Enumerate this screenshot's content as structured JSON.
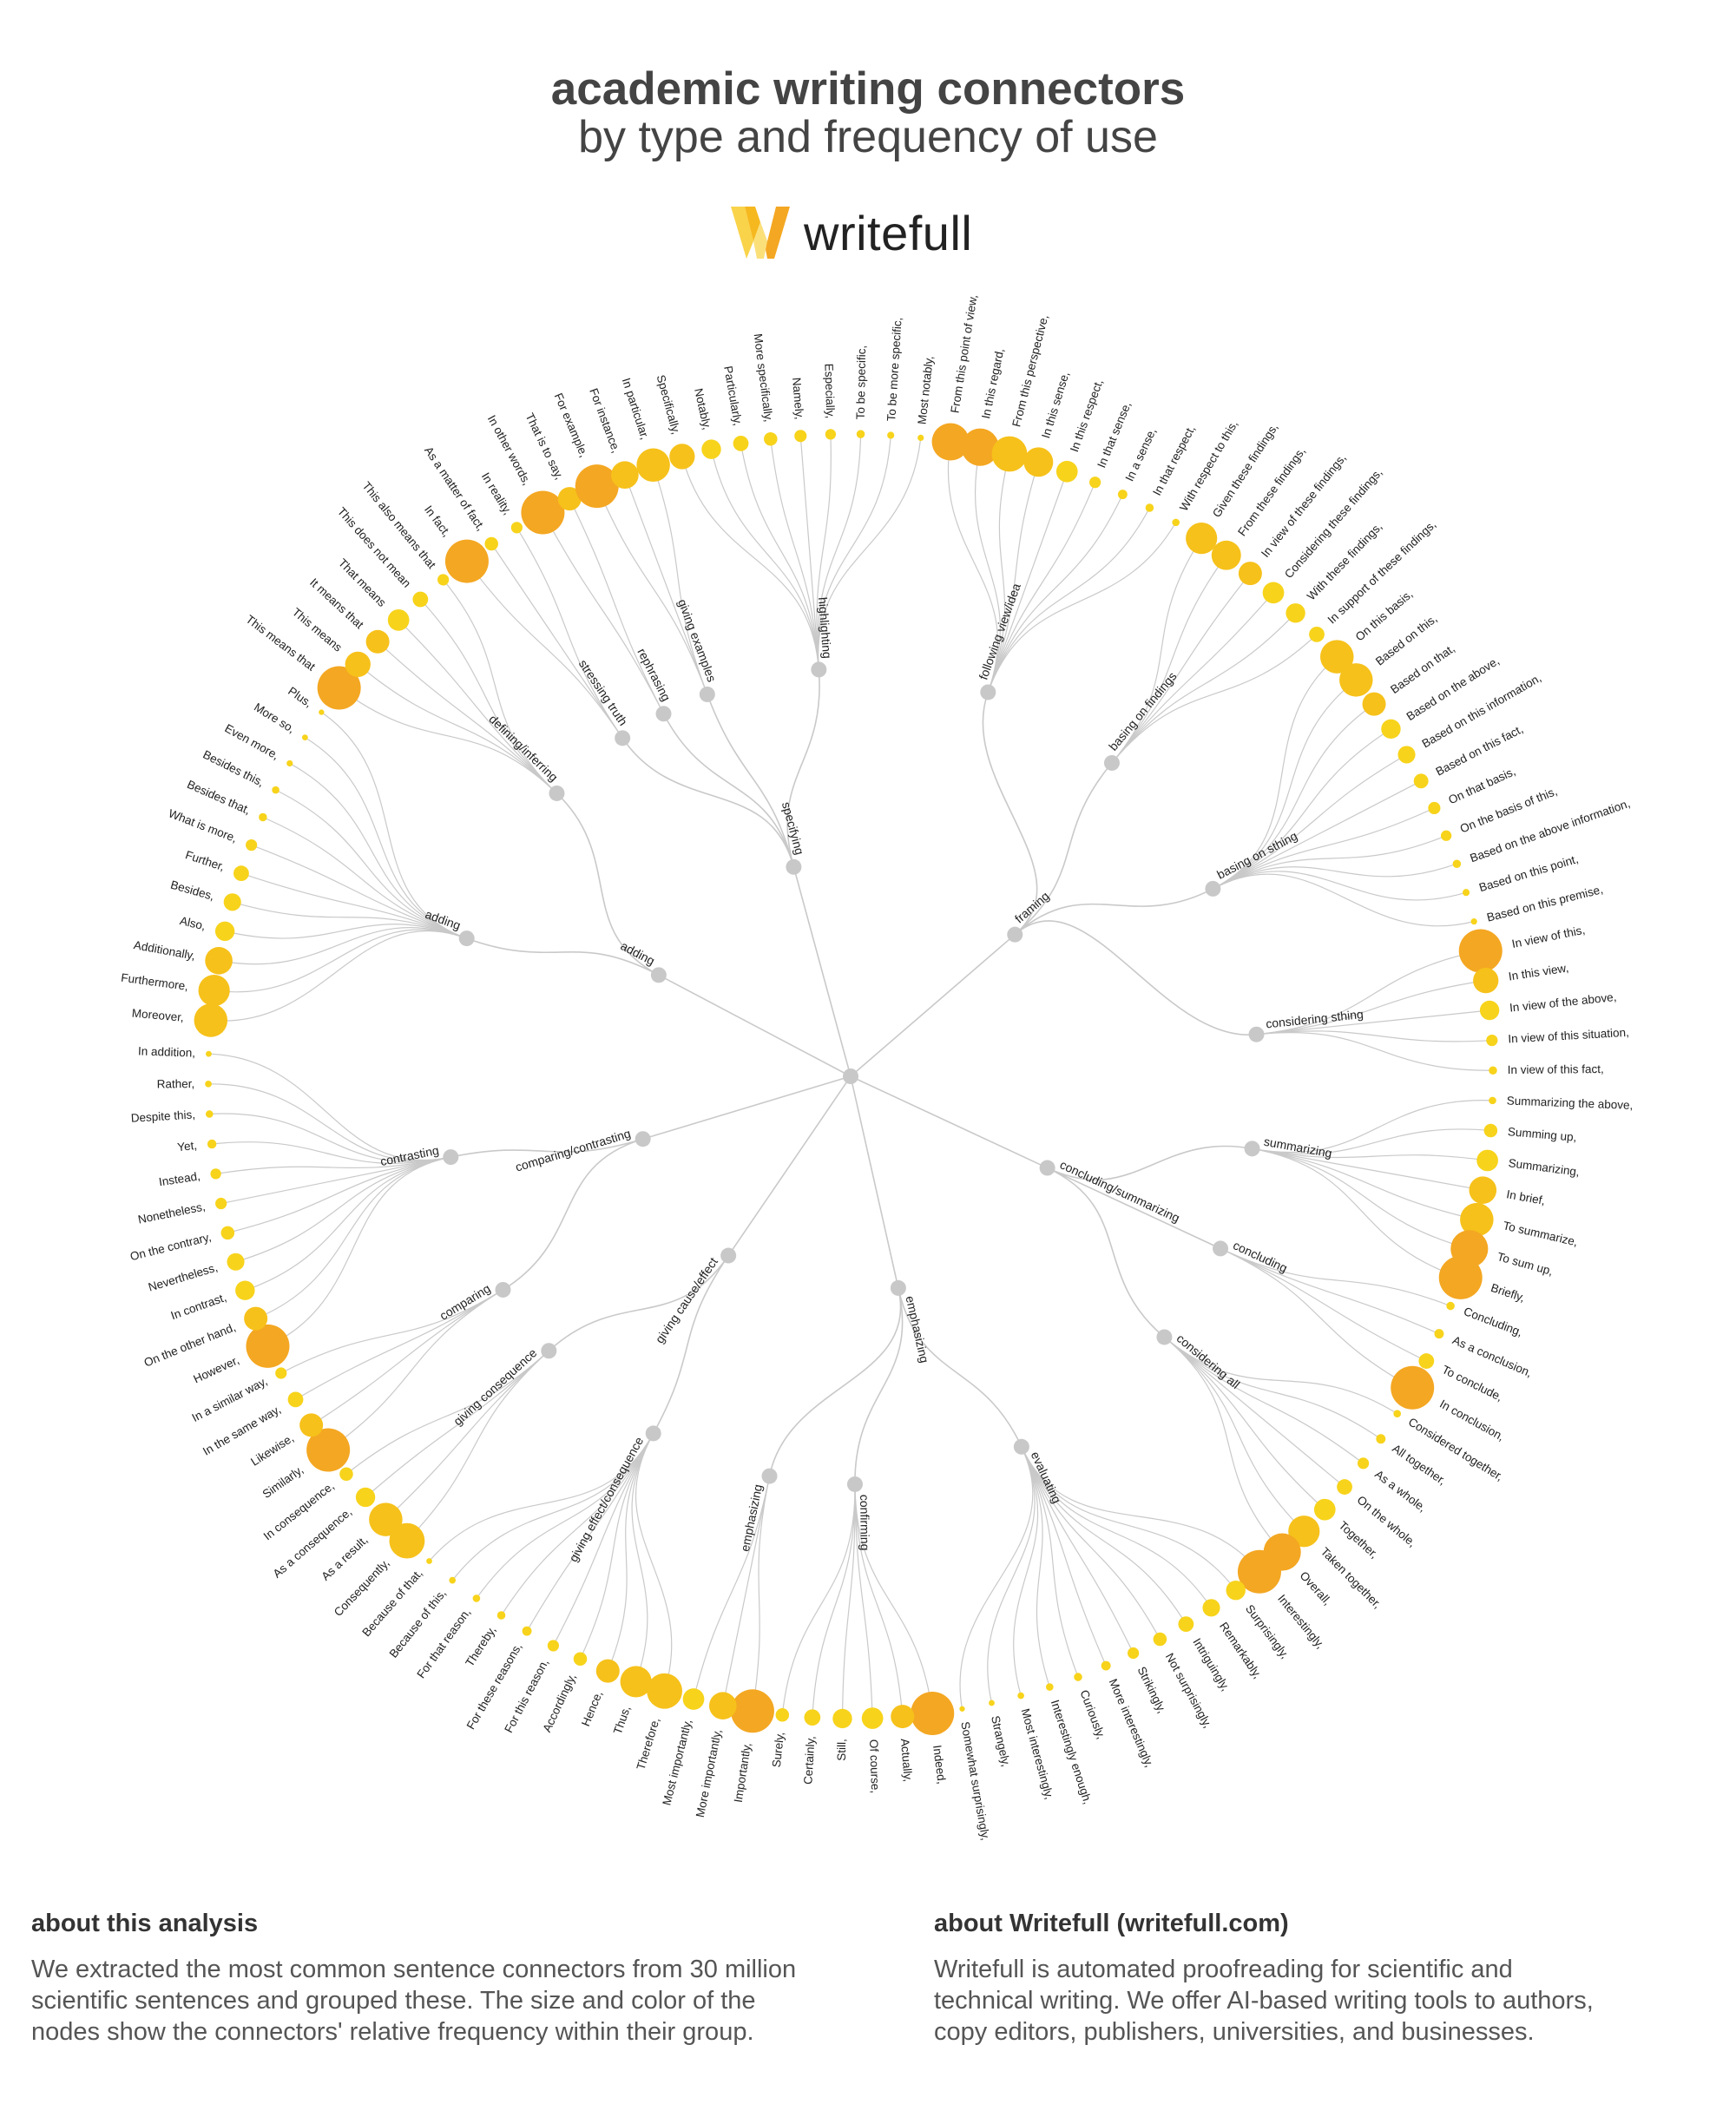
{
  "title": "academic writing connectors",
  "subtitle": "by type and frequency of use",
  "logo": {
    "text": "writefull"
  },
  "colors": {
    "big": "#f4a722",
    "mid": "#f6c11a",
    "small": "#f7d31b",
    "link": "#c9c9c9",
    "node": "#c8c8c8"
  },
  "tree": {
    "groups": [
      {
        "label": "adding",
        "subs": [
          {
            "label": "adding",
            "leaves": [
              [
                "Moreover,",
                0.75
              ],
              [
                "Furthermore,",
                0.7
              ],
              [
                "Additionally,",
                0.6
              ],
              [
                "Also,",
                0.4
              ],
              [
                "Besides,",
                0.35
              ],
              [
                "Further,",
                0.3
              ],
              [
                "What is more,",
                0.2
              ],
              [
                "Besides that,",
                0.12
              ],
              [
                "Besides this,",
                0.1
              ],
              [
                "Even more,",
                0.07
              ],
              [
                "More so,",
                0.06
              ],
              [
                "Plus,",
                0.05
              ]
            ]
          },
          {
            "label": "defining/inferring",
            "leaves": [
              [
                "This means that",
                1.0
              ],
              [
                "This means",
                0.55
              ],
              [
                "It means that",
                0.5
              ],
              [
                "That means",
                0.45
              ],
              [
                "This does not mean",
                0.3
              ],
              [
                "This also means that",
                0.2
              ]
            ]
          }
        ]
      },
      {
        "label": "specifying",
        "subs": [
          {
            "label": "stressing truth",
            "leaves": [
              [
                "In fact,",
                1.0
              ],
              [
                "As a matter of fact,",
                0.25
              ],
              [
                "In reality,",
                0.2
              ]
            ]
          },
          {
            "label": "rephrasing",
            "leaves": [
              [
                "In other words,",
                1.0
              ],
              [
                "That is to say,",
                0.5
              ]
            ]
          },
          {
            "label": "giving examples",
            "leaves": [
              [
                "For example,",
                1.0
              ],
              [
                "For instance,",
                0.6
              ],
              [
                "In particular,",
                0.75
              ]
            ]
          },
          {
            "label": "highlighting",
            "leaves": [
              [
                "Specifically,",
                0.55
              ],
              [
                "Notably,",
                0.4
              ],
              [
                "Particularly,",
                0.3
              ],
              [
                "More specifically,",
                0.25
              ],
              [
                "Namely,",
                0.22
              ],
              [
                "Especially,",
                0.18
              ],
              [
                "To be specific,",
                0.12
              ],
              [
                "To be more specific,",
                0.09
              ],
              [
                "Most notably,",
                0.07
              ]
            ]
          }
        ]
      },
      {
        "label": "framing",
        "subs": [
          {
            "label": "following view/idea",
            "leaves": [
              [
                "From this point of view,",
                0.85
              ],
              [
                "In this regard,",
                0.85
              ],
              [
                "From this perspective,",
                0.8
              ],
              [
                "In this sense,",
                0.65
              ],
              [
                "In this respect,",
                0.45
              ],
              [
                "In that sense,",
                0.2
              ],
              [
                "In a sense,",
                0.15
              ],
              [
                "In that respect,",
                0.12
              ],
              [
                "With respect to this,",
                0.1
              ]
            ]
          },
          {
            "label": "basing on findings",
            "leaves": [
              [
                "Given these findings,",
                0.7
              ],
              [
                "From these findings,",
                0.65
              ],
              [
                "In view of these findings,",
                0.5
              ],
              [
                "Considering these findings,",
                0.45
              ],
              [
                "With these findings,",
                0.4
              ],
              [
                "In support of these findings,",
                0.3
              ]
            ]
          },
          {
            "label": "basing on sthing",
            "leaves": [
              [
                "On this basis,",
                0.75
              ],
              [
                "Based on this,",
                0.75
              ],
              [
                "Based on that,",
                0.5
              ],
              [
                "Based on the above,",
                0.4
              ],
              [
                "Based on this information,",
                0.35
              ],
              [
                "Based on this fact,",
                0.28
              ],
              [
                "On that basis,",
                0.22
              ],
              [
                "On the basis of this,",
                0.18
              ],
              [
                "Based on the above information,",
                0.12
              ],
              [
                "Based on this point,",
                0.09
              ],
              [
                "Based on this premise,",
                0.07
              ]
            ]
          },
          {
            "label": "considering sthing",
            "leaves": [
              [
                "In view of this,",
                1.0
              ],
              [
                "In this view,",
                0.55
              ],
              [
                "In view of the above,",
                0.4
              ],
              [
                "In view of this situation,",
                0.2
              ],
              [
                "In view of this fact,",
                0.12
              ]
            ]
          }
        ]
      },
      {
        "label": "concluding/summarizing",
        "subs": [
          {
            "label": "summarizing",
            "leaves": [
              [
                "Summarizing the above,",
                0.1
              ],
              [
                "Summing up,",
                0.25
              ],
              [
                "Summarizing,",
                0.45
              ],
              [
                "In brief,",
                0.6
              ],
              [
                "To summarize,",
                0.75
              ],
              [
                "To sum up,",
                0.85
              ],
              [
                "Briefly,",
                1.0
              ]
            ]
          },
          {
            "label": "concluding",
            "leaves": [
              [
                "Concluding,",
                0.12
              ],
              [
                "As a conclusion,",
                0.15
              ],
              [
                "To conclude,",
                0.3
              ],
              [
                "In conclusion,",
                1.0
              ]
            ]
          },
          {
            "label": "considering all",
            "leaves": [
              [
                "Considered together,",
                0.1
              ],
              [
                "All together,",
                0.15
              ],
              [
                "As a whole,",
                0.2
              ],
              [
                "On the whole,",
                0.3
              ],
              [
                "Together,",
                0.45
              ],
              [
                "Taken together,",
                0.7
              ],
              [
                "Overall,",
                0.85
              ]
            ]
          }
        ]
      },
      {
        "label": "emphasizing",
        "subs": [
          {
            "label": "evaluating",
            "leaves": [
              [
                "Interestingly,",
                1.0
              ],
              [
                "Surprisingly,",
                0.4
              ],
              [
                "Remarkably,",
                0.35
              ],
              [
                "Intriguingly,",
                0.3
              ],
              [
                "Not surprisingly,",
                0.25
              ],
              [
                "Strikingly,",
                0.2
              ],
              [
                "More interestingly,",
                0.15
              ],
              [
                "Curiously,",
                0.12
              ],
              [
                "Interestingly enough,",
                0.1
              ],
              [
                "Most interestingly,",
                0.08
              ],
              [
                "Strangely,",
                0.06
              ],
              [
                "Somewhat surprisingly,",
                0.05
              ]
            ]
          },
          {
            "label": "confirming",
            "leaves": [
              [
                "Indeed,",
                1.0
              ],
              [
                "Actually,",
                0.5
              ],
              [
                "Of course,",
                0.45
              ],
              [
                "Still,",
                0.4
              ],
              [
                "Certainly,",
                0.32
              ],
              [
                "Surely,",
                0.25
              ]
            ]
          },
          {
            "label": "emphasizing",
            "leaves": [
              [
                "Importantly,",
                1.0
              ],
              [
                "More importantly,",
                0.6
              ],
              [
                "Most importantly,",
                0.45
              ]
            ]
          }
        ]
      },
      {
        "label": "giving cause/effect",
        "subs": [
          {
            "label": "giving effect/consequence",
            "leaves": [
              [
                "Therefore,",
                0.8
              ],
              [
                "Thus,",
                0.7
              ],
              [
                "Hence,",
                0.5
              ],
              [
                "Accordingly,",
                0.25
              ],
              [
                "For this reason,",
                0.2
              ],
              [
                "For these reasons,",
                0.15
              ],
              [
                "Thereby,",
                0.12
              ],
              [
                "For that reason,",
                0.1
              ],
              [
                "Because of this,",
                0.08
              ],
              [
                "Because of that,",
                0.06
              ]
            ]
          },
          {
            "label": "giving consequence",
            "leaves": [
              [
                "Consequently,",
                0.8
              ],
              [
                "As a result,",
                0.75
              ],
              [
                "As a consequence,",
                0.4
              ],
              [
                "In consequence,",
                0.25
              ]
            ]
          }
        ]
      },
      {
        "label": "comparing/contrasting",
        "subs": [
          {
            "label": "comparing",
            "leaves": [
              [
                "Similarly,",
                1.0
              ],
              [
                "Likewise,",
                0.5
              ],
              [
                "In the same way,",
                0.3
              ],
              [
                "In a similar way,",
                0.2
              ]
            ]
          },
          {
            "label": "contrasting",
            "leaves": [
              [
                "However,",
                1.0
              ],
              [
                "On the other hand,",
                0.5
              ],
              [
                "In contrast,",
                0.4
              ],
              [
                "Nevertheless,",
                0.35
              ],
              [
                "On the contrary,",
                0.25
              ],
              [
                "Nonetheless,",
                0.2
              ],
              [
                "Instead,",
                0.18
              ],
              [
                "Yet,",
                0.14
              ],
              [
                "Despite this,",
                0.1
              ],
              [
                "Rather,",
                0.08
              ],
              [
                "In addition,",
                0.06
              ]
            ]
          }
        ]
      }
    ]
  },
  "footer": {
    "left": {
      "heading": "about this analysis",
      "lines": [
        "We extracted the most common sentence connectors from 30 million",
        "scientific sentences and grouped these. The size and color of the",
        "nodes show the connectors' relative frequency within their group."
      ]
    },
    "right": {
      "heading": "about Writefull (writefull.com)",
      "lines": [
        "Writefull is automated proofreading for scientific and",
        "technical writing. We offer AI-based writing tools to authors,",
        "copy editors, publishers, universities, and businesses."
      ]
    }
  }
}
